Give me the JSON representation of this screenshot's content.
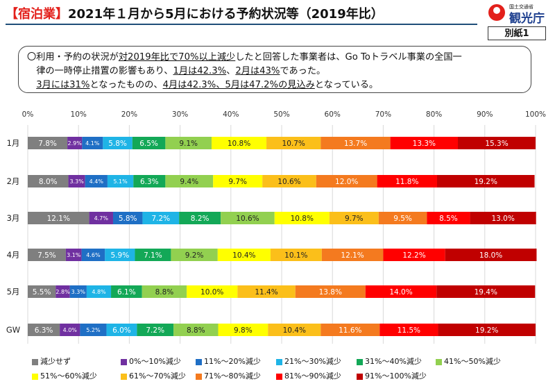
{
  "header": {
    "title_accent": "【宿泊業】",
    "title_rest": "2021年１月から5月における予約状況等（2019年比）",
    "logo_small": "国土交通省",
    "logo_name": "観光庁",
    "annex_label": "別紙1"
  },
  "note": {
    "l1a": "〇利用・予約の状況が",
    "l1u": "対2019年比で70%以上減少",
    "l1b": "したと回答した事業者は、Go Toトラベル事業の全国一",
    "l2a": "律の一時停止措置の影響もあり、",
    "l2u1": "1月は42.3%",
    "l2b": "、",
    "l2u2": "2月は43%",
    "l2c": "であった。",
    "l3u1": "3月には31%",
    "l3a": "となったものの、",
    "l3u2": "4月は42.3%、5月は47.2%の見込み",
    "l3b": "となっている。"
  },
  "chart_data": {
    "type": "bar",
    "stacked": true,
    "orientation": "horizontal",
    "xlim": [
      0,
      100
    ],
    "x_ticks": [
      "0%",
      "10%",
      "20%",
      "30%",
      "40%",
      "50%",
      "60%",
      "70%",
      "80%",
      "90%",
      "100%"
    ],
    "grid": true,
    "legend_position": "bottom",
    "categories": [
      "1月",
      "2月",
      "3月",
      "4月",
      "5月",
      "GW"
    ],
    "series": [
      {
        "name": "減少せず",
        "color": "#7f7f7f",
        "values": [
          7.8,
          8.0,
          12.1,
          7.5,
          5.5,
          6.3
        ]
      },
      {
        "name": "0%～10%減少",
        "color": "#7030a0",
        "values": [
          2.9,
          3.3,
          4.7,
          3.1,
          2.8,
          4.0
        ]
      },
      {
        "name": "11%～20%減少",
        "color": "#1f6fc5",
        "values": [
          4.1,
          4.4,
          5.8,
          4.6,
          3.3,
          5.2
        ]
      },
      {
        "name": "21%～30%減少",
        "color": "#1fb4e6",
        "values": [
          5.8,
          5.1,
          7.2,
          5.9,
          4.8,
          6.0
        ]
      },
      {
        "name": "31%～40%減少",
        "color": "#13a857",
        "values": [
          6.5,
          6.3,
          8.2,
          7.1,
          6.1,
          7.2
        ]
      },
      {
        "name": "41%～50%減少",
        "color": "#92d050",
        "values": [
          9.1,
          9.4,
          10.6,
          9.2,
          8.8,
          8.8
        ]
      },
      {
        "name": "51%～60%減少",
        "color": "#ffff00",
        "values": [
          10.8,
          9.7,
          10.8,
          10.4,
          10.0,
          9.8
        ]
      },
      {
        "name": "61%～70%減少",
        "color": "#fbbf1a",
        "values": [
          10.7,
          10.6,
          9.7,
          10.1,
          11.4,
          10.4
        ]
      },
      {
        "name": "71%～80%減少",
        "color": "#f47a1f",
        "values": [
          13.7,
          12.0,
          9.5,
          12.1,
          13.8,
          11.6
        ]
      },
      {
        "name": "81%～90%減少",
        "color": "#ff0000",
        "values": [
          13.3,
          11.8,
          8.5,
          12.2,
          14.0,
          11.5
        ]
      },
      {
        "name": "91%～100%減少",
        "color": "#c00000",
        "values": [
          15.3,
          19.2,
          13.0,
          18.0,
          19.4,
          19.2
        ]
      }
    ]
  }
}
